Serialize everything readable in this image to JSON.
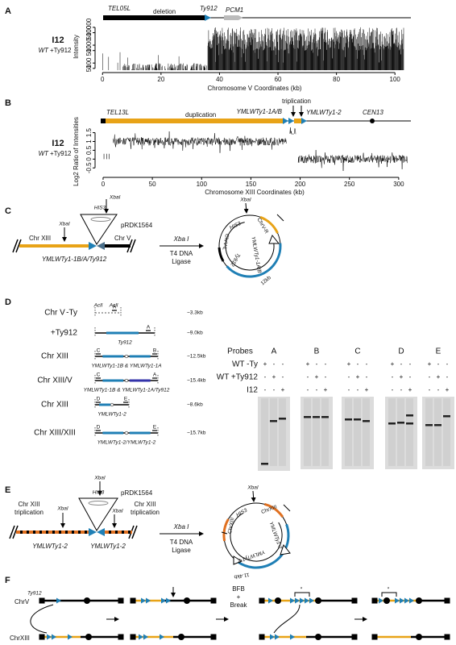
{
  "panel_a": {
    "label": "A",
    "tel": "TEL05L",
    "deletion": "deletion",
    "ty": "Ty912",
    "gene": "PCM1",
    "sample": "I12",
    "strain": "WT",
    "insert": "+Ty912",
    "chart": {
      "type": "bar",
      "ylabel": "Intensity",
      "xlabel": "Chromosome V Coordinates (kb)",
      "xlim": [
        -2,
        106
      ],
      "ylim": [
        40,
        15000
      ],
      "log_y": true,
      "xticks": [
        0,
        20,
        40,
        60,
        80,
        100
      ],
      "yticks": [
        50,
        100,
        500,
        1000,
        5000,
        10000
      ]
    }
  },
  "panel_b": {
    "label": "B",
    "tel": "TEL13L",
    "duplication": "duplication",
    "ty1": "YMLWTy1-1A/B",
    "triplication": "triplication",
    "ty2": "YMLWTy1-2",
    "cen": "CEN13",
    "sample": "I12",
    "strain": "WT",
    "insert": "+Ty912",
    "chart": {
      "type": "line",
      "ylabel": "Log2 Ratio of Intensities",
      "xlabel": "Chromosome XIII Coordinates (kb)",
      "xlim": [
        -6.5,
        314
      ],
      "ylim": [
        -0.9,
        1.8
      ],
      "log_y": false,
      "xticks": [
        0,
        50,
        100,
        150,
        200,
        250,
        300
      ],
      "yticks": [
        -0.5,
        0,
        0.5,
        1,
        1.5
      ]
    }
  },
  "panel_c": {
    "label": "C",
    "chr_left": "Chr XIII",
    "xba_left": "XbaI",
    "his3": "HIS3",
    "xba_top": "XbaI",
    "plasmid": "pRDK1564",
    "chr_right": "Chr V",
    "junction": "YMLWTy1-1B/A/Ty912",
    "enzyme": "Xba I",
    "ligase": [
      "T4 DNA",
      "Ligase"
    ],
    "circle": {
      "xba": "XbaI",
      "his3": "HIS3",
      "chr_r": "ChrV-R",
      "ty1": "YMLWTy1-1A/B",
      "ty912": "Ty912",
      "chr_l": "ChrV-L",
      "size": "12kb"
    }
  },
  "panel_d": {
    "label": "D",
    "fragments": [
      {
        "chrom": "Chr V",
        "name": "-Ty",
        "sites": [
          "AclI",
          "AclI"
        ],
        "probes": [
          "A"
        ],
        "size": "~3.3kb"
      },
      {
        "name": "+Ty912",
        "probes": [
          "A"
        ],
        "caption": "Ty912",
        "size": "~9.0kb"
      },
      {
        "chrom": "Chr XIII",
        "probes": [
          "C",
          "B"
        ],
        "caption": "YMLWTy1-1B & YMLWTy1-1A",
        "size": "~12.5kb"
      },
      {
        "chrom": "Chr XIII/V",
        "probes": [
          "C",
          "A"
        ],
        "caption": "YMLWTy1-1B & YMLWTy1-1A/Ty912",
        "size": "~15.4kb"
      },
      {
        "chrom": "Chr XIII",
        "probes": [
          "D",
          "E"
        ],
        "caption": "YMLWTy1-2",
        "size": "~8.6kb"
      },
      {
        "chrom": "Chr XIII/XIII",
        "probes": [
          "D",
          "E"
        ],
        "caption": "YMLWTy1-2/YMLWTy1-2",
        "size": "~15.7kb"
      }
    ],
    "blots": {
      "title": "Probes",
      "rows": [
        "WT -Ty",
        "WT +Ty912",
        "I12"
      ],
      "probes": [
        {
          "name": "A",
          "signs": [
            [
              "+",
              "-",
              "-"
            ],
            [
              "-",
              "+",
              "-"
            ],
            [
              "-",
              "-",
              "+"
            ]
          ]
        },
        {
          "name": "B",
          "signs": [
            [
              "+",
              "-",
              "-"
            ],
            [
              "-",
              "+",
              "-"
            ],
            [
              "-",
              "-",
              "+"
            ]
          ]
        },
        {
          "name": "C",
          "signs": [
            [
              "+",
              "-",
              "-"
            ],
            [
              "-",
              "+",
              "-"
            ],
            [
              "-",
              "-",
              "+"
            ]
          ]
        },
        {
          "name": "D",
          "signs": [
            [
              "+",
              "-",
              "-"
            ],
            [
              "-",
              "+",
              "-"
            ],
            [
              "-",
              "-",
              "+"
            ]
          ]
        },
        {
          "name": "E",
          "signs": [
            [
              "+",
              "-",
              "-"
            ],
            [
              "-",
              "+",
              "-"
            ],
            [
              "-",
              "-",
              "+"
            ]
          ]
        }
      ]
    }
  },
  "panel_e": {
    "label": "E",
    "tri_left": [
      "Chr XIII",
      "triplication"
    ],
    "xba_left": "XbaI",
    "his3": "HIS3",
    "xba_top": "XbaI",
    "plasmid": "pRDK1564",
    "xba_right": "XbaI",
    "tri_right": [
      "Chr XIII",
      "triplication"
    ],
    "ty_left": "YMLWTy1-2",
    "ty_right": "YMLWTy1-2",
    "enzyme": "Xba I",
    "ligase": [
      "T4 DNA",
      "Ligase"
    ],
    "circle": {
      "xba": "XbaI",
      "his3": "HIS3",
      "chr_top": "ChrXIII",
      "chr_left": "ChrXIII",
      "ty_a": "YMLWTy1-2",
      "ty_b": "YMLWTy1-2",
      "size": "11.4kb"
    }
  },
  "panel_f": {
    "label": "F",
    "ty": "Ty912",
    "chr_v": "ChrV",
    "chr_xiii": "ChrXIII",
    "event": [
      "BFB",
      "+",
      "Break"
    ],
    "marks": [
      "*",
      "*"
    ]
  }
}
